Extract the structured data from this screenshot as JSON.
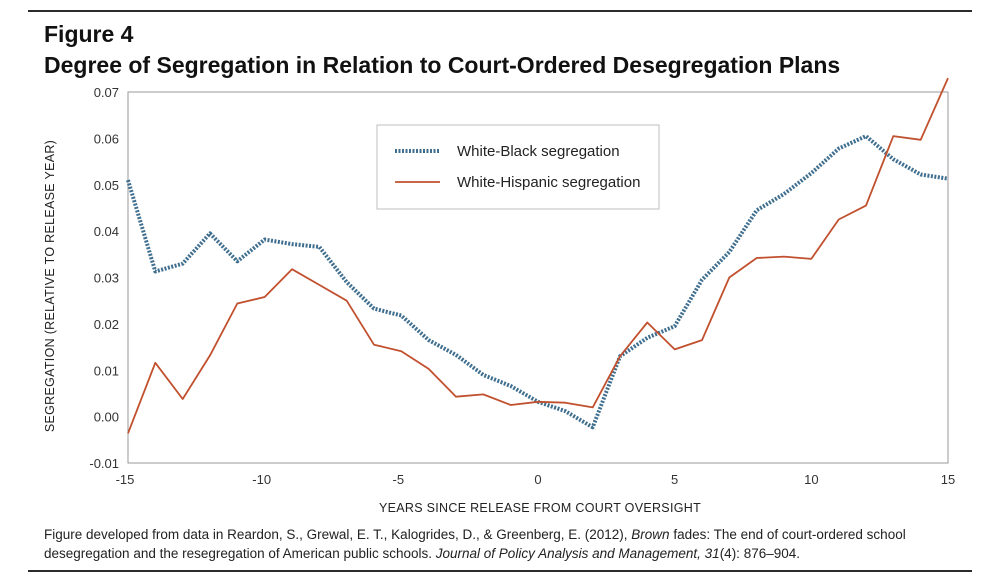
{
  "figure_label": "Figure 4",
  "title": "Degree of Segregation in Relation to Court-Ordered Desegregation Plans",
  "caption": {
    "part1": "Figure developed from data in Reardon, S., Grewal, E. T., Kalogrides, D., & Greenberg, E. (2012), ",
    "italic1": "Brown",
    "part2": " fades: The end of court-ordered school desegregation and the resegregation of American public schools. ",
    "italic2": "Journal of Policy Analysis and Management, 31",
    "part3": "(4): 876–904."
  },
  "chart_data": {
    "type": "line",
    "xlabel": "YEARS SINCE RELEASE FROM COURT OVERSIGHT",
    "ylabel": "SEGREGATION (RELATIVE TO RELEASE YEAR)",
    "xlim": [
      -15,
      15
    ],
    "ylim": [
      -0.01,
      0.07
    ],
    "x_ticks": [
      -15,
      -10,
      -5,
      0,
      5,
      10,
      15
    ],
    "y_ticks": [
      -0.01,
      0.0,
      0.01,
      0.02,
      0.03,
      0.04,
      0.05,
      0.06,
      0.07
    ],
    "y_tick_labels": [
      "-0.01",
      "0.00",
      "0.01",
      "0.02",
      "0.03",
      "0.04",
      "0.05",
      "0.06",
      "0.07"
    ],
    "legend_position": "top-center",
    "x": [
      -15,
      -14,
      -13,
      -12,
      -11,
      -10,
      -9,
      -8,
      -7,
      -6,
      -5,
      -4,
      -3,
      -2,
      -1,
      0,
      1,
      2,
      3,
      4,
      5,
      6,
      7,
      8,
      9,
      10,
      11,
      12,
      13,
      14,
      15
    ],
    "series": [
      {
        "name": "White-Black segregation",
        "color": "#3f6e8f",
        "style": "dotted",
        "values": [
          0.051,
          0.0313,
          0.033,
          0.0395,
          0.0335,
          0.0382,
          0.0372,
          0.0366,
          0.029,
          0.0233,
          0.0218,
          0.0165,
          0.0133,
          0.009,
          0.0066,
          0.0032,
          0.0012,
          -0.0023,
          0.013,
          0.017,
          0.0195,
          0.0295,
          0.0355,
          0.0445,
          0.048,
          0.0525,
          0.0578,
          0.0605,
          0.0555,
          0.0522,
          0.0513
        ]
      },
      {
        "name": "White-Hispanic segregation",
        "color": "#c1502e",
        "style": "solid",
        "values": [
          -0.0036,
          0.0116,
          0.0038,
          0.0132,
          0.0244,
          0.0258,
          0.0318,
          0.0284,
          0.025,
          0.0155,
          0.0141,
          0.0103,
          0.0043,
          0.0048,
          0.0025,
          0.0032,
          0.003,
          0.002,
          0.013,
          0.0203,
          0.0145,
          0.0165,
          0.03,
          0.0342,
          0.0345,
          0.034,
          0.0425,
          0.0455,
          0.0605,
          0.0597,
          0.073
        ]
      }
    ]
  }
}
